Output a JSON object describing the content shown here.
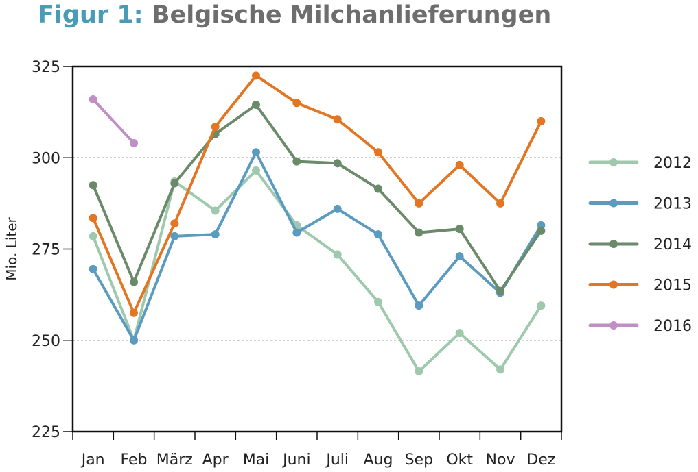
{
  "title": {
    "lead": "Figur 1:",
    "rest": "Belgische Milchanlieferungen"
  },
  "chart_data": {
    "type": "line",
    "title": "Figur 1: Belgische Milchanlieferungen",
    "ylabel": "Mio. Liter",
    "xlabel": "",
    "categories": [
      "Jan",
      "Feb",
      "März",
      "Apr",
      "Mai",
      "Juni",
      "Juli",
      "Aug",
      "Sep",
      "Okt",
      "Nov",
      "Dez"
    ],
    "ylim": [
      225,
      325
    ],
    "yticks": [
      225,
      250,
      275,
      300,
      325
    ],
    "grid": "horizontal dotted at 250, 275, 300",
    "legend_position": "right",
    "series": [
      {
        "name": "2012",
        "color": "#9ec9ad",
        "values": [
          278.5,
          250,
          293.5,
          285.5,
          296.5,
          281.5,
          273.5,
          260.5,
          241.5,
          252,
          242,
          259.5
        ]
      },
      {
        "name": "2013",
        "color": "#5a9bbf",
        "values": [
          269.5,
          250,
          278.5,
          279,
          301.5,
          279.5,
          286,
          279,
          259.5,
          273,
          263,
          281.5
        ]
      },
      {
        "name": "2014",
        "color": "#6a8a6a",
        "values": [
          292.5,
          266,
          293,
          306.5,
          314.5,
          299,
          298.5,
          291.5,
          279.5,
          280.5,
          263.5,
          280
        ]
      },
      {
        "name": "2015",
        "color": "#e27623",
        "values": [
          283.5,
          257.5,
          282,
          308.5,
          322.5,
          315,
          310.5,
          301.5,
          287.5,
          298,
          287.5,
          310
        ]
      },
      {
        "name": "2016",
        "color": "#c08fc5",
        "values": [
          316,
          304,
          null,
          null,
          null,
          null,
          null,
          null,
          null,
          null,
          null,
          null
        ]
      }
    ]
  }
}
